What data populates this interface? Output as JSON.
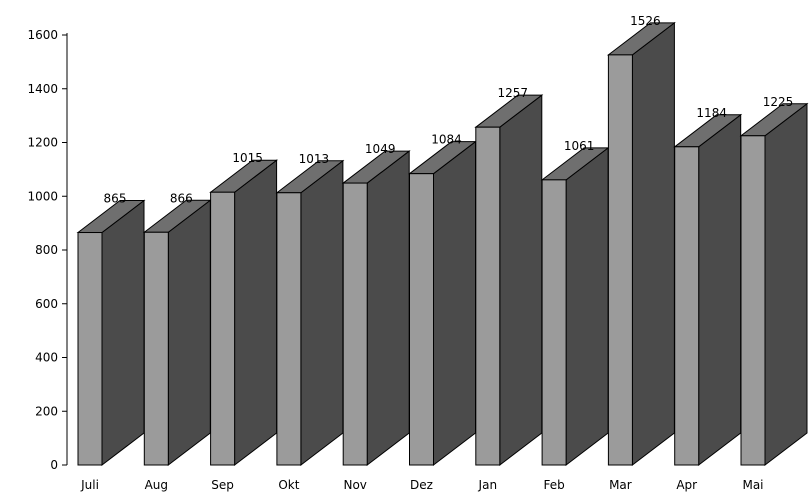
{
  "chart_data": {
    "type": "bar",
    "title": "",
    "xlabel": "",
    "ylabel": "",
    "categories": [
      "Juli",
      "Aug",
      "Sep",
      "Okt",
      "Nov",
      "Dez",
      "Jan",
      "Feb",
      "Mar",
      "Apr",
      "Mai"
    ],
    "values": [
      865,
      866,
      1015,
      1013,
      1049,
      1084,
      1257,
      1061,
      1526,
      1184,
      1225
    ],
    "ylim": [
      0,
      1600
    ],
    "yticks": [
      0,
      200,
      400,
      600,
      800,
      1000,
      1200,
      1400,
      1600
    ],
    "grid": false,
    "legend": false,
    "style": "3d",
    "colors": {
      "front": "#9b9b9b",
      "side": "#4b4b4b",
      "top": "#6f6f6f",
      "edge": "#000000"
    }
  }
}
